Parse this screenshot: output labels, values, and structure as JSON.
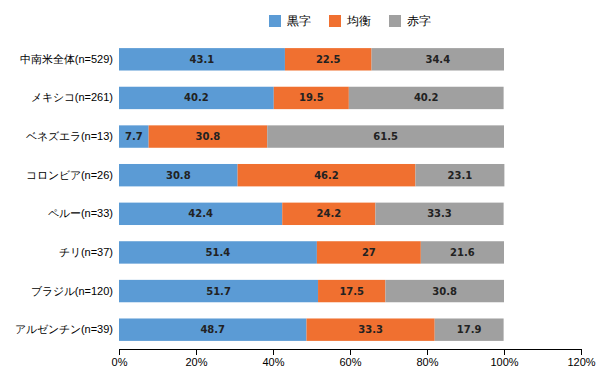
{
  "chart_data": {
    "type": "bar",
    "orientation": "horizontal",
    "stacked": true,
    "categories": [
      "中南米全体(n=529)",
      "メキシコ(n=261)",
      "ベネズエラ(n=13)",
      "コロンビア(n=26)",
      "ペルー(n=33)",
      "チリ(n=37)",
      "ブラジル(n=120)",
      "アルゼンチン(n=39)"
    ],
    "series": [
      {
        "name": "黒字",
        "color": "#5b9bd5",
        "values": [
          43.1,
          40.2,
          7.7,
          30.8,
          42.4,
          51.4,
          51.7,
          48.7
        ]
      },
      {
        "name": "均衡",
        "color": "#f07030",
        "values": [
          22.5,
          19.5,
          30.8,
          46.2,
          24.2,
          27.0,
          17.5,
          33.3
        ]
      },
      {
        "name": "赤字",
        "color": "#a0a0a0",
        "values": [
          34.4,
          40.2,
          61.5,
          23.1,
          33.3,
          21.6,
          30.8,
          17.9
        ]
      }
    ],
    "xlim": [
      0,
      120
    ],
    "xticks": [
      {
        "value": 0,
        "label": "0%"
      },
      {
        "value": 20,
        "label": "20%"
      },
      {
        "value": 40,
        "label": "40%"
      },
      {
        "value": 60,
        "label": "60%"
      },
      {
        "value": 80,
        "label": "80%"
      },
      {
        "value": 100,
        "label": "100%"
      },
      {
        "value": 120,
        "label": "120%"
      }
    ],
    "data_labels": true,
    "legend": "top",
    "grid": false
  }
}
